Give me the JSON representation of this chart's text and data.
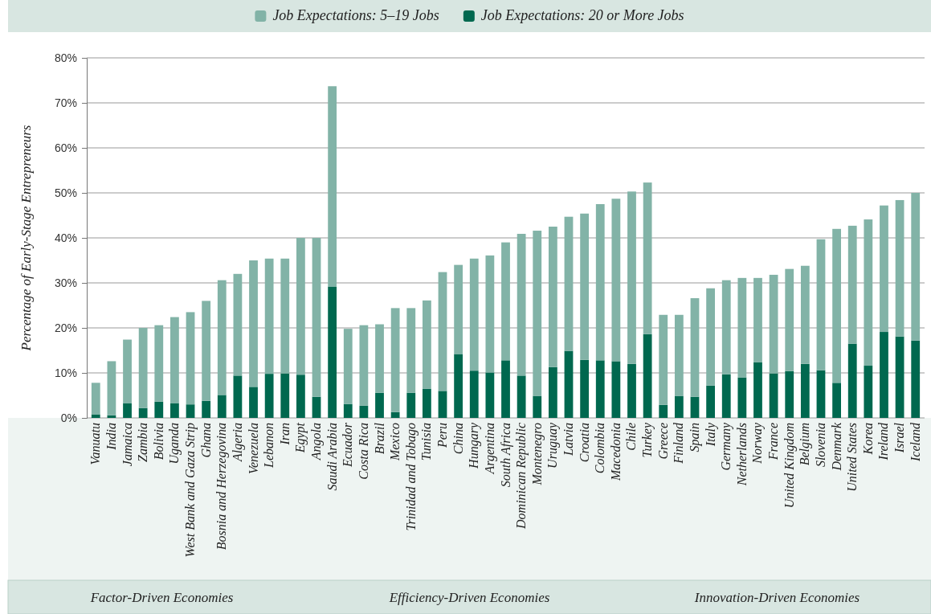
{
  "chart_data": {
    "type": "bar",
    "stacked": true,
    "ylabel": "Percentage of Early-Stage Entrepreneurs",
    "categories": [
      "Vanuatu",
      "India",
      "Jamaica",
      "Zambia",
      "Bolivia",
      "Uganda",
      "West Bank and Gaza Strip",
      "Ghana",
      "Bosnia and Herzegovina",
      "Algeria",
      "Venezuela",
      "Lebanon",
      "Iran",
      "Egypt",
      "Angola",
      "Saudi Arabia",
      "Ecuador",
      "Costa Rica",
      "Brazil",
      "Mexico",
      "Trinidad and Tobago",
      "Tunisia",
      "Peru",
      "China",
      "Hungary",
      "Argentina",
      "South Africa",
      "Dominican Republic",
      "Montenegro",
      "Uruguay",
      "Latvia",
      "Croatia",
      "Colombia",
      "Macedonia",
      "Chile",
      "Turkey",
      "Greece",
      "Finland",
      "Spain",
      "Italy",
      "Germany",
      "Netherlands",
      "Norway",
      "France",
      "United Kingdom",
      "Belgium",
      "Slovenia",
      "Denmark",
      "United States",
      "Korea",
      "Ireland",
      "Israel",
      "Iceland"
    ],
    "series": [
      {
        "name": "Job Expectations: 20 or More Jobs",
        "color": "#00684f",
        "values": [
          0.8,
          0.6,
          3.3,
          2.2,
          3.6,
          3.3,
          3.0,
          3.8,
          5.1,
          9.4,
          6.9,
          9.8,
          9.9,
          9.6,
          4.7,
          29.2,
          3.1,
          2.7,
          5.6,
          1.3,
          5.6,
          6.5,
          6.0,
          14.2,
          10.5,
          10.1,
          12.8,
          9.4,
          4.9,
          11.3,
          14.9,
          12.9,
          12.8,
          12.6,
          12.0,
          18.6,
          2.9,
          4.9,
          4.7,
          7.2,
          9.7,
          9.0,
          12.4,
          9.9,
          10.4,
          12.0,
          10.6,
          7.8,
          16.5,
          11.6,
          19.1,
          18.1,
          17.2
        ]
      },
      {
        "name": "Job Expectations: 5–19 Jobs",
        "color": "#82b3a7",
        "values": [
          7.0,
          12.0,
          14.1,
          17.8,
          17.0,
          19.1,
          20.5,
          22.2,
          25.5,
          22.6,
          28.1,
          25.6,
          25.5,
          30.4,
          35.3,
          44.5,
          16.7,
          17.9,
          15.2,
          23.1,
          18.8,
          19.6,
          26.4,
          19.8,
          24.9,
          26.0,
          26.2,
          31.5,
          36.7,
          31.2,
          29.8,
          32.5,
          34.7,
          36.1,
          38.3,
          33.7,
          20.0,
          18.0,
          21.9,
          21.6,
          20.9,
          22.1,
          18.7,
          21.9,
          22.7,
          21.8,
          29.1,
          34.2,
          26.2,
          32.5,
          28.1,
          30.3,
          32.8
        ]
      }
    ],
    "ylim": [
      0,
      80
    ],
    "yticks": [
      {
        "value": 0,
        "label": "0%"
      },
      {
        "value": 10,
        "label": "10%"
      },
      {
        "value": 20,
        "label": "20%"
      },
      {
        "value": 30,
        "label": "30%"
      },
      {
        "value": 40,
        "label": "40%"
      },
      {
        "value": 50,
        "label": "50%"
      },
      {
        "value": 60,
        "label": "60%"
      },
      {
        "value": 70,
        "label": "70%"
      },
      {
        "value": 80,
        "label": "80%"
      }
    ],
    "grid": "y",
    "legend": "top",
    "annotations": [
      "Factor-Driven Economies",
      "Efficiency-Driven Economies",
      "Innovation-Driven Economies"
    ]
  }
}
